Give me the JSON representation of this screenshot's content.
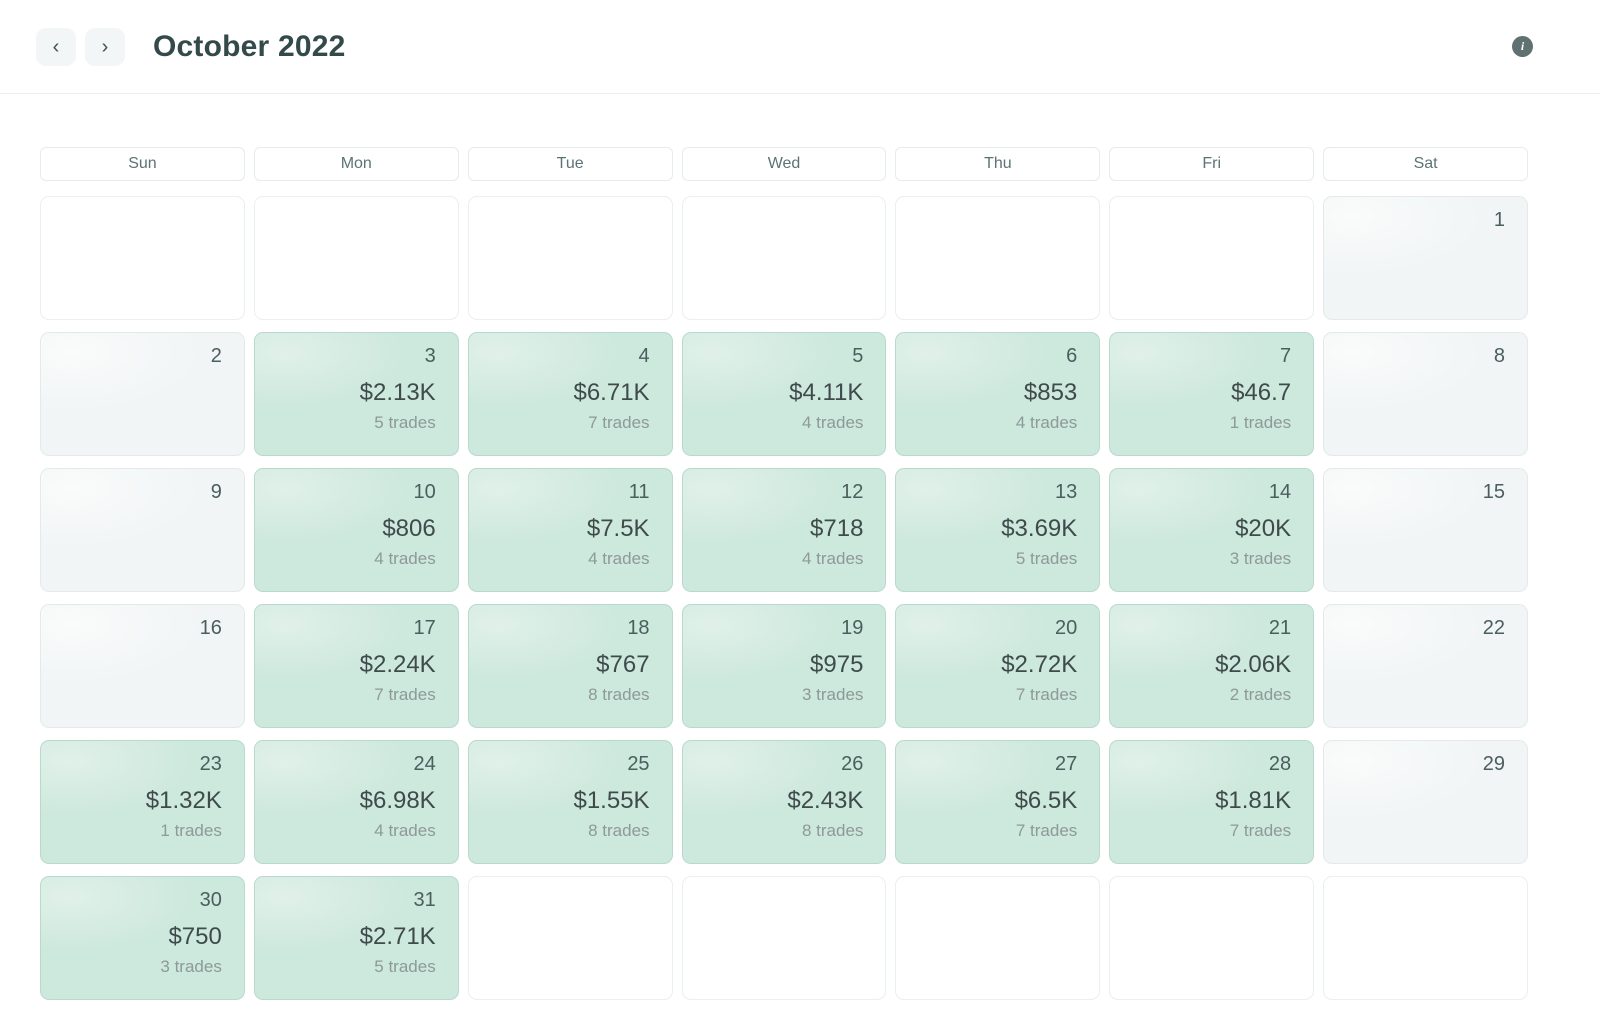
{
  "header": {
    "title": "October 2022",
    "prev_label": "‹",
    "next_label": "›",
    "info_label": "i"
  },
  "calendar": {
    "weekdays": [
      "Sun",
      "Mon",
      "Tue",
      "Wed",
      "Thu",
      "Fri",
      "Sat"
    ],
    "colors": {
      "profit_bg": "#cde8dd",
      "profit_border": "#b8dacd",
      "no_trade_bg": "#f1f5f5",
      "title_color": "#33494a",
      "day_number_color": "#4b5e5e",
      "pnl_color": "#3f4b4b",
      "trades_color": "#8e9999"
    },
    "weeks": [
      [
        {
          "type": "blank"
        },
        {
          "type": "blank"
        },
        {
          "type": "blank"
        },
        {
          "type": "blank"
        },
        {
          "type": "blank"
        },
        {
          "type": "blank"
        },
        {
          "type": "no_trade",
          "day": "1"
        }
      ],
      [
        {
          "type": "no_trade",
          "day": "2"
        },
        {
          "type": "profit",
          "day": "3",
          "pnl": "$2.13K",
          "trades": "5 trades"
        },
        {
          "type": "profit",
          "day": "4",
          "pnl": "$6.71K",
          "trades": "7 trades"
        },
        {
          "type": "profit",
          "day": "5",
          "pnl": "$4.11K",
          "trades": "4 trades"
        },
        {
          "type": "profit",
          "day": "6",
          "pnl": "$853",
          "trades": "4 trades"
        },
        {
          "type": "profit",
          "day": "7",
          "pnl": "$46.7",
          "trades": "1 trades"
        },
        {
          "type": "no_trade",
          "day": "8"
        }
      ],
      [
        {
          "type": "no_trade",
          "day": "9"
        },
        {
          "type": "profit",
          "day": "10",
          "pnl": "$806",
          "trades": "4 trades"
        },
        {
          "type": "profit",
          "day": "11",
          "pnl": "$7.5K",
          "trades": "4 trades"
        },
        {
          "type": "profit",
          "day": "12",
          "pnl": "$718",
          "trades": "4 trades"
        },
        {
          "type": "profit",
          "day": "13",
          "pnl": "$3.69K",
          "trades": "5 trades"
        },
        {
          "type": "profit",
          "day": "14",
          "pnl": "$20K",
          "trades": "3 trades"
        },
        {
          "type": "no_trade",
          "day": "15"
        }
      ],
      [
        {
          "type": "no_trade",
          "day": "16"
        },
        {
          "type": "profit",
          "day": "17",
          "pnl": "$2.24K",
          "trades": "7 trades"
        },
        {
          "type": "profit",
          "day": "18",
          "pnl": "$767",
          "trades": "8 trades"
        },
        {
          "type": "profit",
          "day": "19",
          "pnl": "$975",
          "trades": "3 trades"
        },
        {
          "type": "profit",
          "day": "20",
          "pnl": "$2.72K",
          "trades": "7 trades"
        },
        {
          "type": "profit",
          "day": "21",
          "pnl": "$2.06K",
          "trades": "2 trades"
        },
        {
          "type": "no_trade",
          "day": "22"
        }
      ],
      [
        {
          "type": "profit",
          "day": "23",
          "pnl": "$1.32K",
          "trades": "1 trades"
        },
        {
          "type": "profit",
          "day": "24",
          "pnl": "$6.98K",
          "trades": "4 trades"
        },
        {
          "type": "profit",
          "day": "25",
          "pnl": "$1.55K",
          "trades": "8 trades"
        },
        {
          "type": "profit",
          "day": "26",
          "pnl": "$2.43K",
          "trades": "8 trades"
        },
        {
          "type": "profit",
          "day": "27",
          "pnl": "$6.5K",
          "trades": "7 trades"
        },
        {
          "type": "profit",
          "day": "28",
          "pnl": "$1.81K",
          "trades": "7 trades"
        },
        {
          "type": "no_trade",
          "day": "29"
        }
      ],
      [
        {
          "type": "profit",
          "day": "30",
          "pnl": "$750",
          "trades": "3 trades"
        },
        {
          "type": "profit",
          "day": "31",
          "pnl": "$2.71K",
          "trades": "5 trades"
        },
        {
          "type": "blank"
        },
        {
          "type": "blank"
        },
        {
          "type": "blank"
        },
        {
          "type": "blank"
        },
        {
          "type": "blank"
        }
      ]
    ]
  }
}
